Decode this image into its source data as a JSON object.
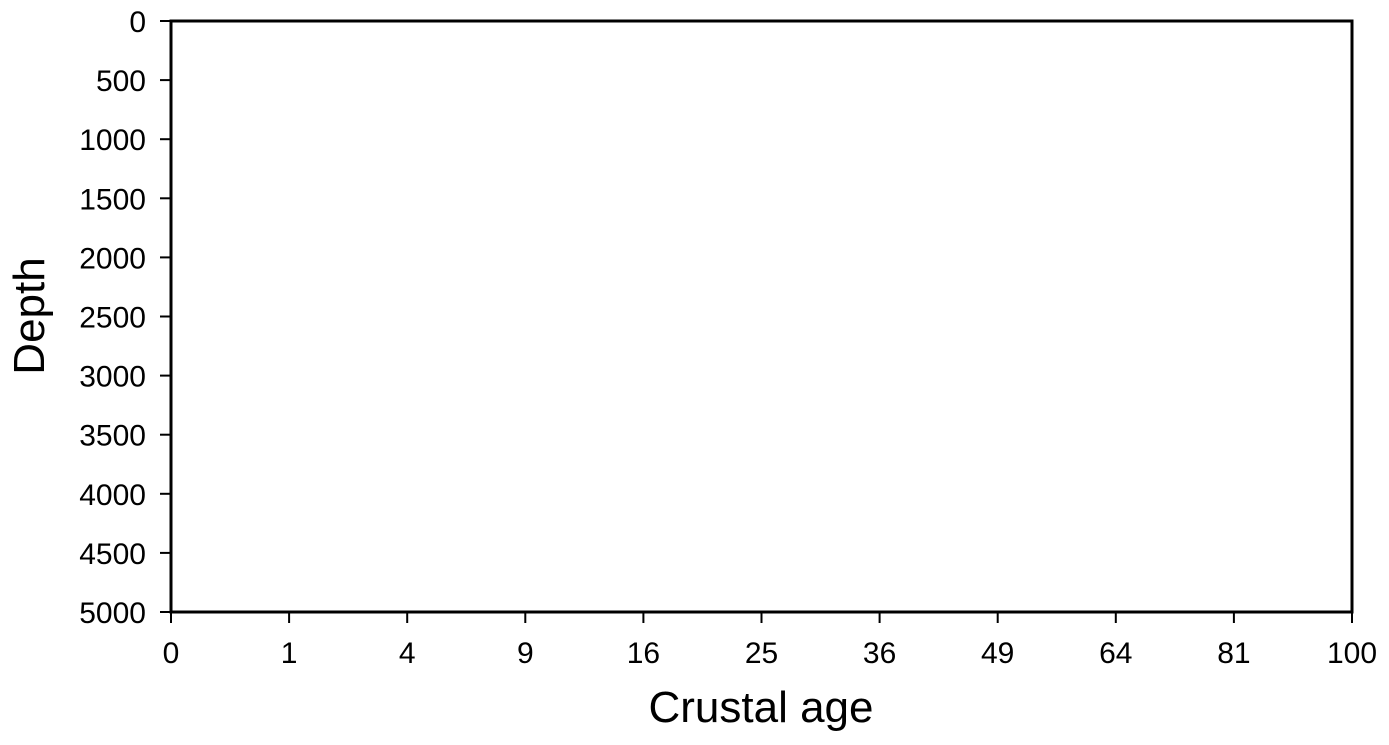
{
  "chart_data": {
    "type": "scatter",
    "title": "",
    "xlabel": "Crustal age",
    "ylabel": "Depth",
    "x_scale": "sqrt",
    "y_inverted": true,
    "xlim": [
      0,
      100
    ],
    "ylim": [
      0,
      5000
    ],
    "x_ticks": [
      0,
      1,
      4,
      9,
      16,
      25,
      36,
      49,
      64,
      81,
      100
    ],
    "x_tick_labels": [
      "0",
      "1",
      "4",
      "9",
      "16",
      "25",
      "36",
      "49",
      "64",
      "81",
      "100"
    ],
    "y_ticks": [
      0,
      500,
      1000,
      1500,
      2000,
      2500,
      3000,
      3500,
      4000,
      4500,
      5000
    ],
    "y_tick_labels": [
      "0",
      "500",
      "1000",
      "1500",
      "2000",
      "2500",
      "3000",
      "3500",
      "4000",
      "4500",
      "5000"
    ],
    "series": [],
    "grid": false,
    "colors": {
      "axis": "#000000",
      "background": "#ffffff"
    }
  }
}
